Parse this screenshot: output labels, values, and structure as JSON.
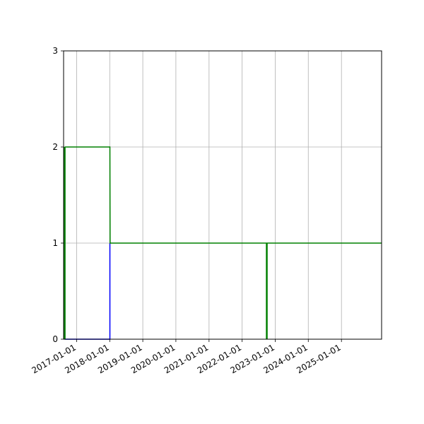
{
  "chart_data": {
    "type": "line",
    "title": "",
    "xlabel": "",
    "ylabel": "",
    "x_axis_type": "date",
    "xlim": [
      "2016-08-10",
      "2026-03-20"
    ],
    "ylim": [
      0,
      3
    ],
    "x_ticks": [
      "2017-01-01",
      "2018-01-01",
      "2019-01-01",
      "2020-01-01",
      "2021-01-01",
      "2022-01-01",
      "2023-01-01",
      "2024-01-01",
      "2025-01-01"
    ],
    "y_ticks": [
      "0",
      "1",
      "2",
      "3"
    ],
    "grid": true,
    "series": [
      {
        "color": "#0000ff",
        "line_width": 1.5,
        "points": [
          {
            "x": "2016-08-22",
            "y": 0
          },
          {
            "x": "2018-01-03",
            "y": 0
          },
          {
            "x": "2018-01-03",
            "y": 1
          }
        ]
      },
      {
        "color": "#008000",
        "line_width": 1.5,
        "points": [
          {
            "x": "2016-08-22",
            "y": 2
          },
          {
            "x": "2018-01-03",
            "y": 2
          },
          {
            "x": "2018-01-05",
            "y": 1
          },
          {
            "x": "2026-03-20",
            "y": 1
          }
        ]
      }
    ],
    "vlines": [
      {
        "x": "2016-08-22",
        "y_from": 0,
        "y_to": 2,
        "color": "#008000",
        "line_width": 2.5
      },
      {
        "x": "2022-09-30",
        "y_from": 0,
        "y_to": 1,
        "color": "#008000",
        "line_width": 2.5
      }
    ]
  }
}
